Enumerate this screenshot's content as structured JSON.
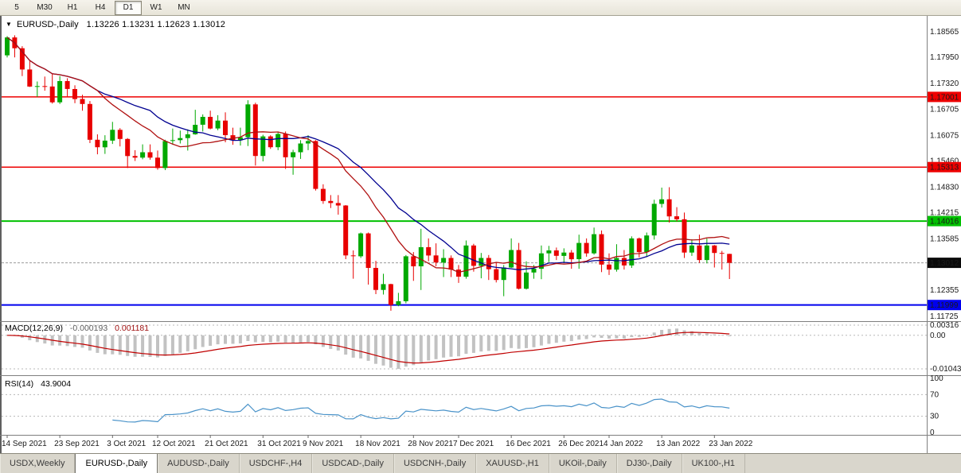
{
  "toolbar": {
    "timeframes": [
      "5",
      "M30",
      "H1",
      "H4",
      "D1",
      "W1",
      "MN"
    ],
    "active_timeframe": "D1"
  },
  "chart": {
    "title": {
      "dropdown_icon": "▼",
      "symbol": "EURUSD-,Daily",
      "ohlc_text": "1.13226 1.13231 1.12623 1.13012"
    },
    "price_axis": {
      "ticks": [
        "1.18565",
        "1.17950",
        "1.17320",
        "1.16705",
        "1.16075",
        "1.15460",
        "1.14830",
        "1.14215",
        "1.13585",
        "1.12355",
        "1.11725"
      ]
    },
    "time_axis": {
      "ticks": [
        {
          "label": "14 Sep 2021",
          "bar": 0
        },
        {
          "label": "23 Sep 2021",
          "bar": 7
        },
        {
          "label": "3 Oct 2021",
          "bar": 14
        },
        {
          "label": "12 Oct 2021",
          "bar": 20
        },
        {
          "label": "21 Oct 2021",
          "bar": 27
        },
        {
          "label": "31 Oct 2021",
          "bar": 34
        },
        {
          "label": "9 Nov 2021",
          "bar": 40
        },
        {
          "label": "18 Nov 2021",
          "bar": 47
        },
        {
          "label": "28 Nov 2021",
          "bar": 54
        },
        {
          "label": "7 Dec 2021",
          "bar": 60
        },
        {
          "label": "16 Dec 2021",
          "bar": 67
        },
        {
          "label": "26 Dec 2021",
          "bar": 74
        },
        {
          "label": "4 Jan 2022",
          "bar": 80
        },
        {
          "label": "13 Jan 2022",
          "bar": 87
        },
        {
          "label": "23 Jan 2022",
          "bar": 94
        }
      ]
    },
    "levels": [
      {
        "label": "1.17001",
        "value": 1.17001,
        "color": "#ee0000",
        "width": 1.5
      },
      {
        "label": "1.15313",
        "value": 1.15313,
        "color": "#ee0000",
        "width": 1.5
      },
      {
        "label": "1.14016",
        "value": 1.14016,
        "color": "#00c000",
        "width": 2
      },
      {
        "label": "1.11999",
        "value": 1.11999,
        "color": "#0000ee",
        "width": 2
      }
    ],
    "bid": {
      "label": "1.13012",
      "value": 1.13012,
      "color": "#0a0a0a"
    },
    "colors": {
      "up": "#00a800",
      "down": "#e80000",
      "ma_fast": "#b01010",
      "ma_slow": "#000090"
    }
  },
  "chart_data": {
    "type": "candlestick",
    "symbol": "EURUSD-",
    "timeframe": "Daily",
    "y_range": [
      1.1165,
      1.189
    ],
    "ohlc": [
      [
        "2021-09-14",
        1.18,
        1.1846,
        1.1795,
        1.1843
      ],
      [
        "2021-09-15",
        1.1843,
        1.1848,
        1.1795,
        1.1817
      ],
      [
        "2021-09-16",
        1.1817,
        1.1822,
        1.175,
        1.1766
      ],
      [
        "2021-09-17",
        1.1766,
        1.1788,
        1.1724,
        1.1725
      ],
      [
        "2021-09-20",
        1.1725,
        1.1737,
        1.17,
        1.1726
      ],
      [
        "2021-09-21",
        1.1726,
        1.1749,
        1.1715,
        1.1725
      ],
      [
        "2021-09-22",
        1.1725,
        1.1756,
        1.1684,
        1.1687
      ],
      [
        "2021-09-23",
        1.1687,
        1.175,
        1.1683,
        1.1738
      ],
      [
        "2021-09-24",
        1.1738,
        1.1745,
        1.1701,
        1.1719
      ],
      [
        "2021-09-27",
        1.1719,
        1.1728,
        1.1685,
        1.1695
      ],
      [
        "2021-09-28",
        1.1695,
        1.1705,
        1.1667,
        1.1683
      ],
      [
        "2021-09-29",
        1.1683,
        1.169,
        1.1589,
        1.1597
      ],
      [
        "2021-09-30",
        1.1597,
        1.161,
        1.1562,
        1.1579
      ],
      [
        "2021-10-01",
        1.1579,
        1.1608,
        1.1563,
        1.1595
      ],
      [
        "2021-10-04",
        1.1595,
        1.164,
        1.1587,
        1.1621
      ],
      [
        "2021-10-05",
        1.1621,
        1.1625,
        1.1581,
        1.1599
      ],
      [
        "2021-10-06",
        1.1599,
        1.1601,
        1.1529,
        1.1558
      ],
      [
        "2021-10-07",
        1.1558,
        1.1572,
        1.1546,
        1.1554
      ],
      [
        "2021-10-08",
        1.1554,
        1.1586,
        1.155,
        1.1567
      ],
      [
        "2021-10-11",
        1.1567,
        1.1586,
        1.1549,
        1.1554
      ],
      [
        "2021-10-12",
        1.1554,
        1.1571,
        1.1525,
        1.1529
      ],
      [
        "2021-10-13",
        1.1529,
        1.1597,
        1.1524,
        1.1594
      ],
      [
        "2021-10-14",
        1.1594,
        1.1624,
        1.1585,
        1.1596
      ],
      [
        "2021-10-15",
        1.1596,
        1.1619,
        1.1588,
        1.1601
      ],
      [
        "2021-10-18",
        1.1601,
        1.1622,
        1.1571,
        1.161
      ],
      [
        "2021-10-19",
        1.161,
        1.1669,
        1.1609,
        1.1633
      ],
      [
        "2021-10-20",
        1.1633,
        1.1658,
        1.1617,
        1.1652
      ],
      [
        "2021-10-21",
        1.1652,
        1.1667,
        1.1622,
        1.1624
      ],
      [
        "2021-10-22",
        1.1624,
        1.1656,
        1.162,
        1.1643
      ],
      [
        "2021-10-25",
        1.1643,
        1.1663,
        1.1591,
        1.1608
      ],
      [
        "2021-10-26",
        1.1608,
        1.1626,
        1.1585,
        1.1596
      ],
      [
        "2021-10-27",
        1.1596,
        1.1626,
        1.1583,
        1.1603
      ],
      [
        "2021-10-28",
        1.1603,
        1.1692,
        1.1582,
        1.1682
      ],
      [
        "2021-10-29",
        1.1682,
        1.1686,
        1.1535,
        1.1558
      ],
      [
        "2021-11-01",
        1.1558,
        1.1609,
        1.1545,
        1.1605
      ],
      [
        "2021-11-02",
        1.1605,
        1.1608,
        1.1575,
        1.1579
      ],
      [
        "2021-11-03",
        1.1579,
        1.1616,
        1.1572,
        1.1611
      ],
      [
        "2021-11-04",
        1.1611,
        1.1617,
        1.1527,
        1.1555
      ],
      [
        "2021-11-05",
        1.1555,
        1.1573,
        1.1513,
        1.1567
      ],
      [
        "2021-11-08",
        1.1567,
        1.1596,
        1.1551,
        1.1588
      ],
      [
        "2021-11-09",
        1.1588,
        1.1608,
        1.1572,
        1.1594
      ],
      [
        "2021-11-10",
        1.1594,
        1.1596,
        1.1475,
        1.1479
      ],
      [
        "2021-11-11",
        1.1479,
        1.149,
        1.1443,
        1.145
      ],
      [
        "2021-11-12",
        1.145,
        1.1464,
        1.1433,
        1.1445
      ],
      [
        "2021-11-15",
        1.1445,
        1.1464,
        1.1417,
        1.1439
      ],
      [
        "2021-11-16",
        1.1439,
        1.144,
        1.131,
        1.1319
      ],
      [
        "2021-11-17",
        1.1319,
        1.1331,
        1.1263,
        1.1317
      ],
      [
        "2021-11-18",
        1.1317,
        1.1374,
        1.1313,
        1.1372
      ],
      [
        "2021-11-19",
        1.1372,
        1.1374,
        1.1249,
        1.1289
      ],
      [
        "2021-11-22",
        1.1289,
        1.1306,
        1.1226,
        1.1236
      ],
      [
        "2021-11-23",
        1.1236,
        1.1275,
        1.1225,
        1.125
      ],
      [
        "2021-11-24",
        1.125,
        1.1251,
        1.1186,
        1.12
      ],
      [
        "2021-11-25",
        1.12,
        1.1229,
        1.1197,
        1.1209
      ],
      [
        "2021-11-26",
        1.1209,
        1.132,
        1.1204,
        1.1317
      ],
      [
        "2021-11-29",
        1.1317,
        1.1327,
        1.1258,
        1.1293
      ],
      [
        "2021-11-30",
        1.1293,
        1.1383,
        1.1236,
        1.1339
      ],
      [
        "2021-12-01",
        1.1339,
        1.136,
        1.1305,
        1.1319
      ],
      [
        "2021-12-02",
        1.1319,
        1.1348,
        1.1293,
        1.1302
      ],
      [
        "2021-12-03",
        1.1302,
        1.1334,
        1.1267,
        1.1313
      ],
      [
        "2021-12-06",
        1.1313,
        1.1319,
        1.1267,
        1.1285
      ],
      [
        "2021-12-07",
        1.1285,
        1.1296,
        1.1253,
        1.1268
      ],
      [
        "2021-12-08",
        1.1268,
        1.1355,
        1.1263,
        1.1343
      ],
      [
        "2021-12-09",
        1.1343,
        1.1347,
        1.128,
        1.1294
      ],
      [
        "2021-12-10",
        1.1294,
        1.1325,
        1.1264,
        1.1313
      ],
      [
        "2021-12-13",
        1.1313,
        1.132,
        1.126,
        1.1286
      ],
      [
        "2021-12-14",
        1.1286,
        1.1302,
        1.1254,
        1.126
      ],
      [
        "2021-12-15",
        1.126,
        1.1296,
        1.1221,
        1.129
      ],
      [
        "2021-12-16",
        1.129,
        1.136,
        1.1289,
        1.1332
      ],
      [
        "2021-12-17",
        1.1332,
        1.1349,
        1.1237,
        1.1239
      ],
      [
        "2021-12-20",
        1.1239,
        1.1305,
        1.1237,
        1.1278
      ],
      [
        "2021-12-21",
        1.1278,
        1.1296,
        1.1263,
        1.1287
      ],
      [
        "2021-12-22",
        1.1287,
        1.1343,
        1.1262,
        1.1324
      ],
      [
        "2021-12-23",
        1.1324,
        1.1342,
        1.1303,
        1.1331
      ],
      [
        "2021-12-24",
        1.1331,
        1.1338,
        1.1308,
        1.1318
      ],
      [
        "2021-12-27",
        1.1318,
        1.1336,
        1.1302,
        1.1326
      ],
      [
        "2021-12-28",
        1.1326,
        1.1332,
        1.1287,
        1.131
      ],
      [
        "2021-12-29",
        1.131,
        1.1369,
        1.1287,
        1.1349
      ],
      [
        "2021-12-30",
        1.1349,
        1.136,
        1.1316,
        1.1324
      ],
      [
        "2021-12-31",
        1.1324,
        1.1386,
        1.1321,
        1.137
      ],
      [
        "2022-01-03",
        1.137,
        1.1379,
        1.1279,
        1.1297
      ],
      [
        "2022-01-04",
        1.1297,
        1.1324,
        1.1272,
        1.1285
      ],
      [
        "2022-01-05",
        1.1285,
        1.1346,
        1.128,
        1.1313
      ],
      [
        "2022-01-06",
        1.1313,
        1.1332,
        1.1285,
        1.1295
      ],
      [
        "2022-01-07",
        1.1295,
        1.1365,
        1.1289,
        1.136
      ],
      [
        "2022-01-10",
        1.136,
        1.1362,
        1.1314,
        1.1327
      ],
      [
        "2022-01-11",
        1.1327,
        1.1374,
        1.1315,
        1.1367
      ],
      [
        "2022-01-12",
        1.1367,
        1.1453,
        1.1357,
        1.1443
      ],
      [
        "2022-01-13",
        1.1443,
        1.1482,
        1.1434,
        1.1454
      ],
      [
        "2022-01-14",
        1.1454,
        1.1483,
        1.1398,
        1.1413
      ],
      [
        "2022-01-17",
        1.1413,
        1.1435,
        1.1401,
        1.1406
      ],
      [
        "2022-01-18",
        1.1406,
        1.1422,
        1.1313,
        1.1326
      ],
      [
        "2022-01-19",
        1.1326,
        1.1358,
        1.1318,
        1.1343
      ],
      [
        "2022-01-20",
        1.1343,
        1.1369,
        1.1301,
        1.1308
      ],
      [
        "2022-01-21",
        1.1308,
        1.136,
        1.13,
        1.1343
      ],
      [
        "2022-01-24",
        1.1343,
        1.1344,
        1.129,
        1.1325
      ],
      [
        "2022-01-25",
        1.1325,
        1.133,
        1.1285,
        1.1323
      ],
      [
        "2022-01-26",
        1.13226,
        1.13231,
        1.12623,
        1.13012
      ]
    ],
    "overlays": [
      {
        "name": "moving-average-fast",
        "type": "sma",
        "period": 13,
        "color": "#b01010"
      },
      {
        "name": "moving-average-slow",
        "type": "sma",
        "period": 20,
        "color": "#000090"
      }
    ],
    "macd": {
      "name": "MACD(12,26,9)",
      "value": "-0.000193",
      "signal": "0.001181",
      "fast": 12,
      "slow": 26,
      "signal_period": 9,
      "axis_labels": [
        "0.00316",
        "0.00",
        "-0.01043"
      ],
      "histogram_color": "#c2c2c2",
      "line_color": "#c00000"
    },
    "rsi": {
      "name": "RSI(14)",
      "value": "43.9004",
      "period": 14,
      "axis_labels": [
        "100",
        "70",
        "30",
        "0"
      ],
      "levels": [
        70,
        30
      ],
      "line_color": "#4a93c9"
    }
  },
  "tabs": [
    "USDX,Weekly",
    "EURUSD-,Daily",
    "AUDUSD-,Daily",
    "USDCHF-,H4",
    "USDCAD-,Daily",
    "USDCNH-,Daily",
    "XAUUSD-,H1",
    "UKOil-,Daily",
    "DJ30-,Daily",
    "UK100-,H1"
  ],
  "active_tab": "EURUSD-,Daily"
}
